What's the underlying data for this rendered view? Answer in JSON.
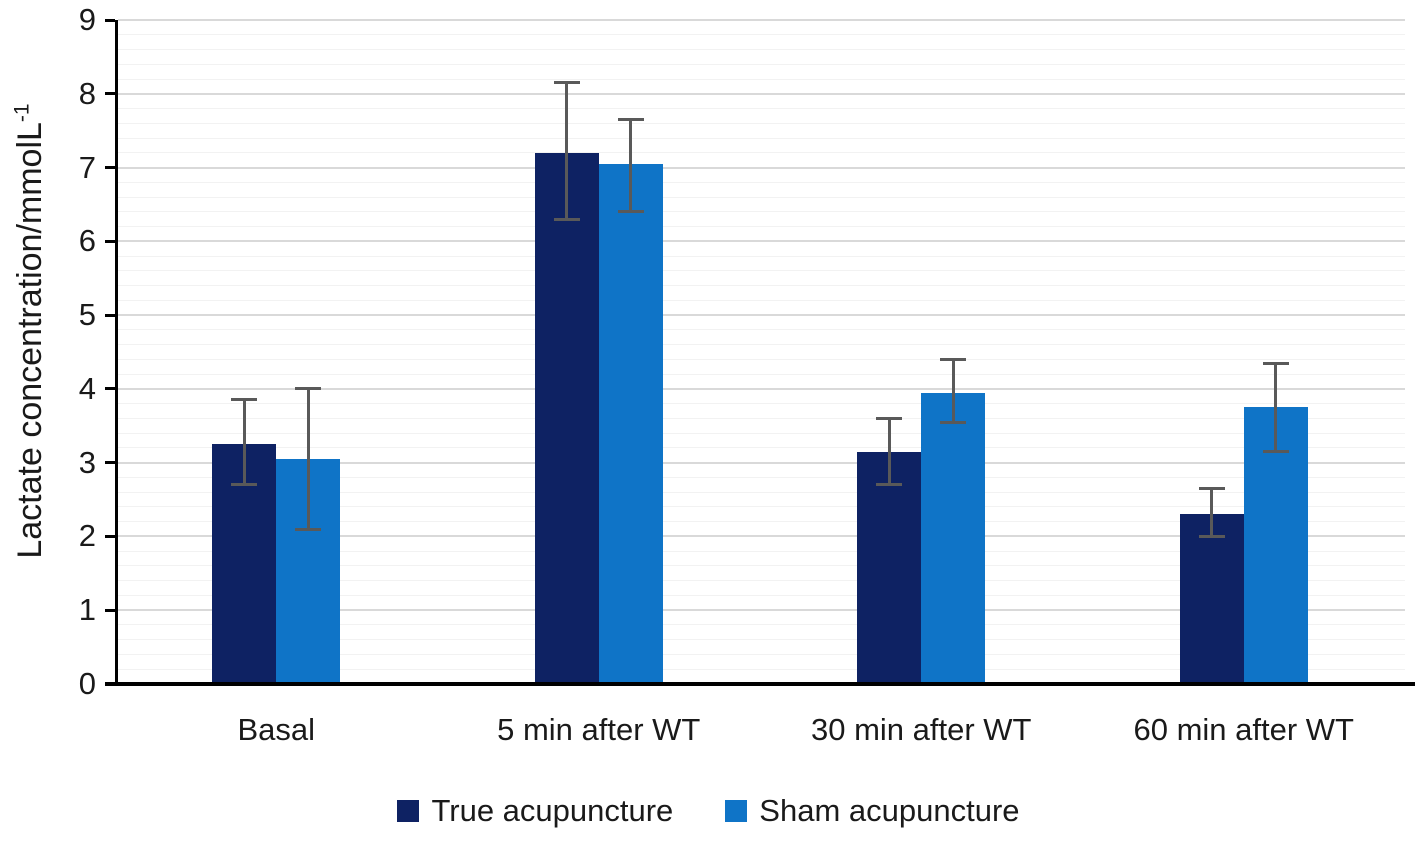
{
  "chart_data": {
    "type": "bar",
    "title": "",
    "categories": [
      "Basal",
      "5 min after WT",
      "30 min after WT",
      "60 min after WT"
    ],
    "series": [
      {
        "name": "True acupuncture",
        "color": "#0e2263",
        "values": [
          3.25,
          7.2,
          3.15,
          2.3
        ],
        "error_high": [
          3.85,
          8.15,
          3.6,
          2.65
        ],
        "error_low": [
          2.7,
          6.3,
          2.7,
          2.0
        ]
      },
      {
        "name": "Sham acupuncture",
        "color": "#0f74c7",
        "values": [
          3.05,
          7.05,
          3.95,
          3.75
        ],
        "error_high": [
          4.0,
          7.65,
          4.4,
          4.35
        ],
        "error_low": [
          2.1,
          6.4,
          3.55,
          3.15
        ]
      }
    ],
    "xlabel": "",
    "ylabel": "Lactate concentration/mmolL",
    "ylabel_superscript": "-1",
    "ylim": [
      0,
      9
    ],
    "ytick_labels": [
      "0",
      "1",
      "2",
      "3",
      "4",
      "5",
      "6",
      "7",
      "8",
      "9"
    ],
    "ytick_step": 1,
    "minor_grid_step": 0.2,
    "grid": true,
    "legend_position": "bottom",
    "colors": {
      "axis": "#000000",
      "text": "#1a1a1a",
      "major_gridline": "#d9d9d9",
      "minor_gridline": "#f2f2f2",
      "error_bar": "#595959",
      "background": "#ffffff"
    }
  }
}
